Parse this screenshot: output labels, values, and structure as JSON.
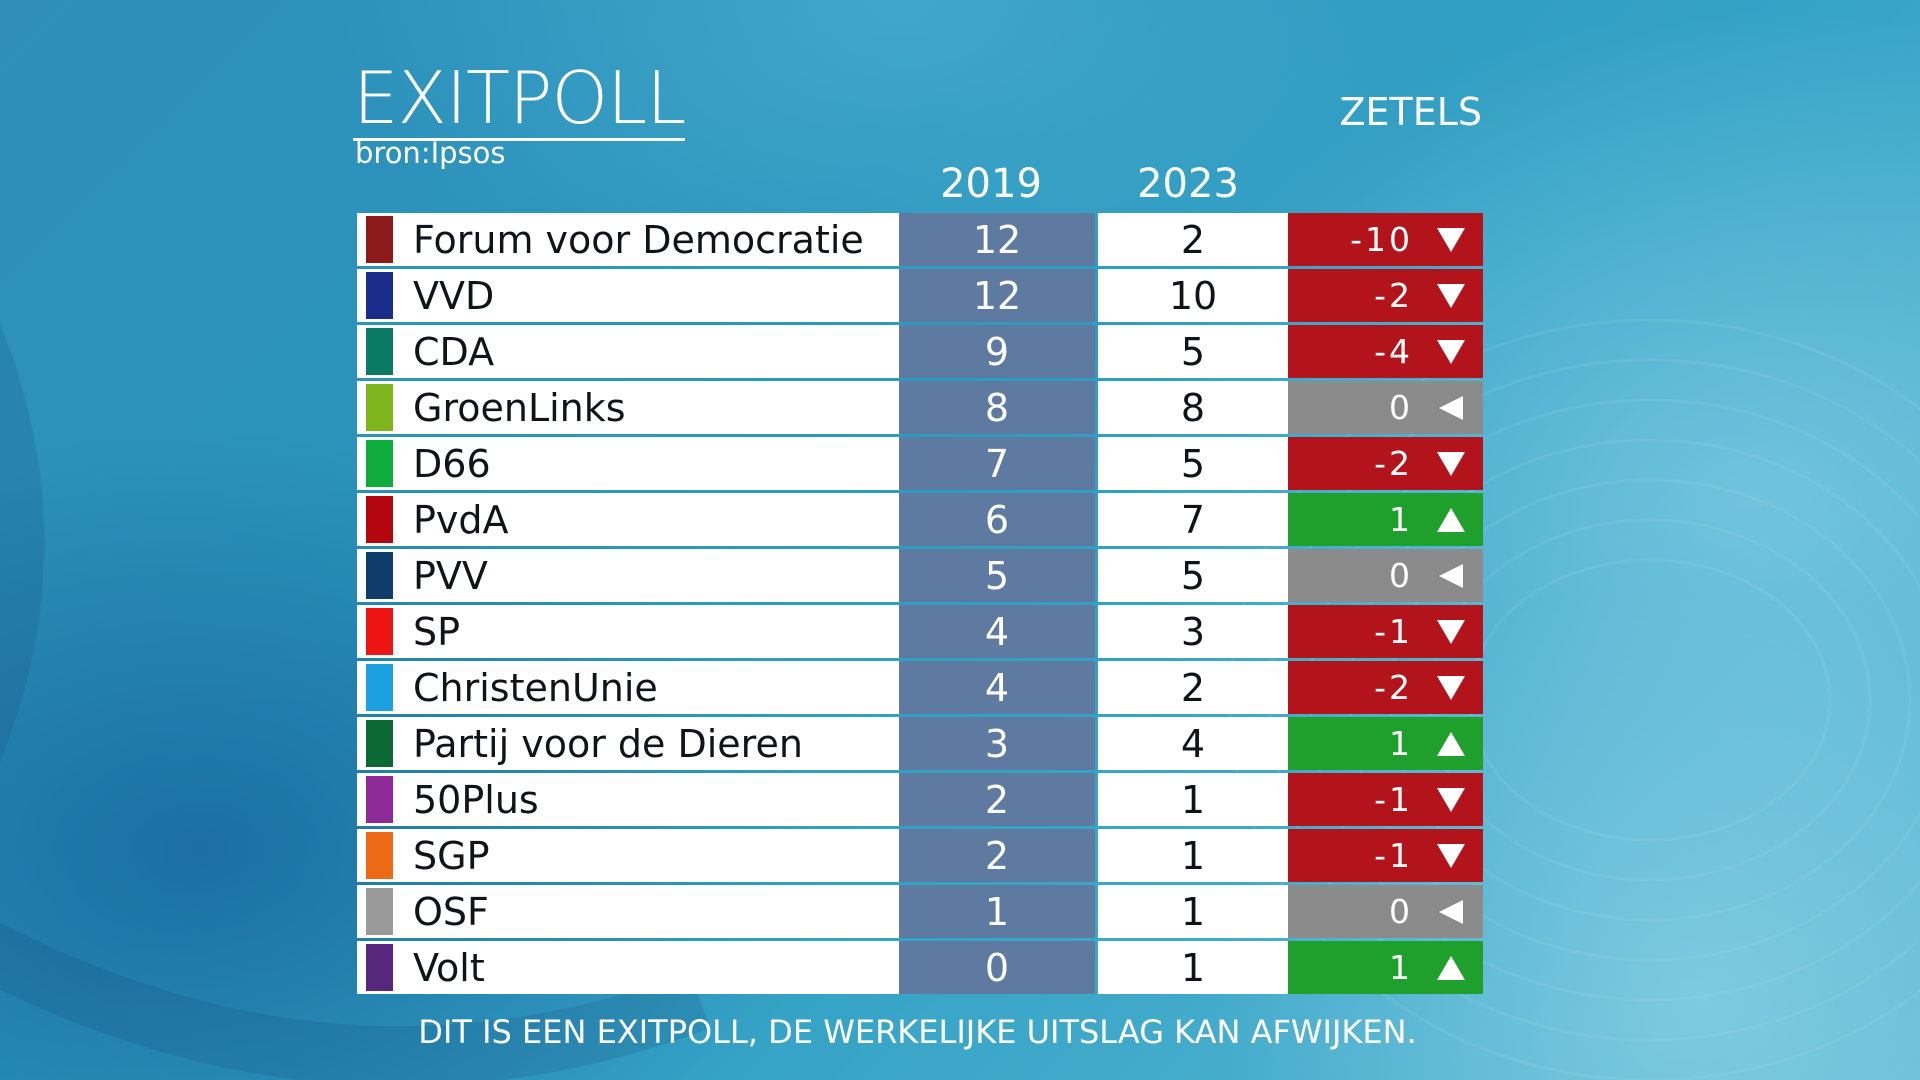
{
  "header": {
    "title": "EXITPOLL",
    "source": "bron:Ipsos",
    "seats_label": "ZETELS",
    "year_prev": "2019",
    "year_curr": "2023"
  },
  "colors": {
    "decrease": "#b3141b",
    "increase": "#1f9f2c",
    "unchanged": "#8b8b8b",
    "prev_column": "#5e7aa0"
  },
  "rows": [
    {
      "party": "Forum voor Democratie",
      "color": "#8c1a1a",
      "y2019": "12",
      "y2023": "2",
      "diff": "-10",
      "trend": "down"
    },
    {
      "party": "VVD",
      "color": "#1a2d8c",
      "y2019": "12",
      "y2023": "10",
      "diff": "-2",
      "trend": "down"
    },
    {
      "party": "CDA",
      "color": "#0a7a64",
      "y2019": "9",
      "y2023": "5",
      "diff": "-4",
      "trend": "down"
    },
    {
      "party": "GroenLinks",
      "color": "#7fb51c",
      "y2019": "8",
      "y2023": "8",
      "diff": "0",
      "trend": "same"
    },
    {
      "party": "D66",
      "color": "#0fae3c",
      "y2019": "7",
      "y2023": "5",
      "diff": "-2",
      "trend": "down"
    },
    {
      "party": "PvdA",
      "color": "#b3060f",
      "y2019": "6",
      "y2023": "7",
      "diff": "1",
      "trend": "up"
    },
    {
      "party": "PVV",
      "color": "#0e3d6b",
      "y2019": "5",
      "y2023": "5",
      "diff": "0",
      "trend": "same"
    },
    {
      "party": "SP",
      "color": "#ee1414",
      "y2019": "4",
      "y2023": "3",
      "diff": "-1",
      "trend": "down"
    },
    {
      "party": "ChristenUnie",
      "color": "#1ba0e0",
      "y2019": "4",
      "y2023": "2",
      "diff": "-2",
      "trend": "down"
    },
    {
      "party": "Partij voor de Dieren",
      "color": "#0b6a34",
      "y2019": "3",
      "y2023": "4",
      "diff": "1",
      "trend": "up"
    },
    {
      "party": "50Plus",
      "color": "#8e2a97",
      "y2019": "2",
      "y2023": "1",
      "diff": "-1",
      "trend": "down"
    },
    {
      "party": "SGP",
      "color": "#ec6a15",
      "y2019": "2",
      "y2023": "1",
      "diff": "-1",
      "trend": "down"
    },
    {
      "party": "OSF",
      "color": "#9a9a9a",
      "y2019": "1",
      "y2023": "1",
      "diff": "0",
      "trend": "same"
    },
    {
      "party": "Volt",
      "color": "#56277c",
      "y2019": "0",
      "y2023": "1",
      "diff": "1",
      "trend": "up"
    }
  ],
  "footer": "DIT IS EEN EXITPOLL, DE WERKELIJKE UITSLAG KAN AFWIJKEN."
}
